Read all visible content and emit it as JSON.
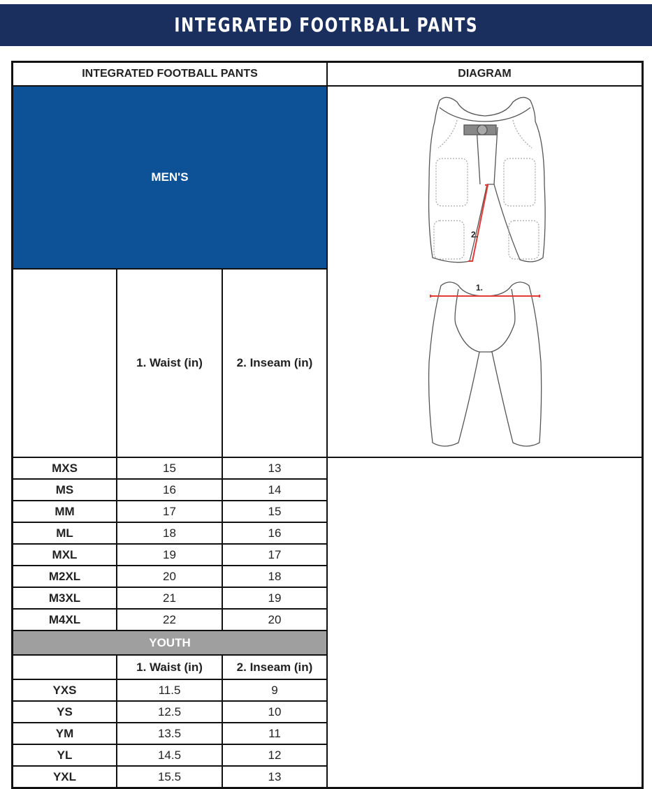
{
  "banner": {
    "title": "INTEGRATED FOOTRBALL PANTS"
  },
  "table": {
    "header": {
      "left": "INTEGRATED FOOTBALL PANTS",
      "right": "DIAGRAM"
    },
    "columns": [
      "",
      "1. Waist (in)",
      "2. Inseam (in)"
    ],
    "mens": {
      "label": "MEN'S",
      "rows": [
        [
          "MXS",
          "15",
          "13"
        ],
        [
          "MS",
          "16",
          "14"
        ],
        [
          "MM",
          "17",
          "15"
        ],
        [
          "ML",
          "18",
          "16"
        ],
        [
          "MXL",
          "19",
          "17"
        ],
        [
          "M2XL",
          "20",
          "18"
        ],
        [
          "M3XL",
          "21",
          "19"
        ],
        [
          "M4XL",
          "22",
          "20"
        ]
      ]
    },
    "youth": {
      "label": "YOUTH",
      "rows": [
        [
          "YXS",
          "11.5",
          "9"
        ],
        [
          "YS",
          "12.5",
          "10"
        ],
        [
          "YM",
          "13.5",
          "11"
        ],
        [
          "YL",
          "14.5",
          "12"
        ],
        [
          "YXL",
          "15.5",
          "13"
        ]
      ]
    }
  },
  "diagram": {
    "inseam_marker": "2.",
    "waist_marker": "1.",
    "measure_color": "#e53935"
  },
  "colors": {
    "banner": "#1b2f5e",
    "mens": "#0d5196",
    "youth": "#9f9f9f"
  }
}
